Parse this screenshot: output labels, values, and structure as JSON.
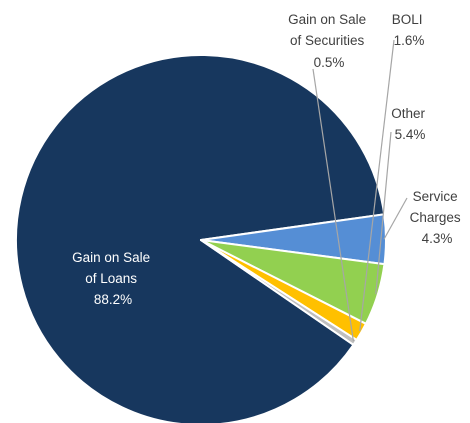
{
  "chart_data": {
    "type": "pie",
    "title": "",
    "slices": [
      {
        "name": "Gain on Sale of Loans",
        "label_lines": [
          "Gain on Sale",
          "of Loans"
        ],
        "value": 88.2,
        "value_label": "88.2%",
        "color": "#17375e"
      },
      {
        "name": "Service Charges",
        "label_lines": [
          "Service",
          "Charges"
        ],
        "value": 4.3,
        "value_label": "4.3%",
        "color": "#558ed5"
      },
      {
        "name": "Other",
        "label_lines": [
          "Other"
        ],
        "value": 5.4,
        "value_label": "5.4%",
        "color": "#92d050"
      },
      {
        "name": "BOLI",
        "label_lines": [
          "BOLI"
        ],
        "value": 1.6,
        "value_label": "1.6%",
        "color": "#ffc000"
      },
      {
        "name": "Gain on Sale of Securities",
        "label_lines": [
          "Gain on Sale",
          "of Securities"
        ],
        "value": 0.5,
        "value_label": "0.5%",
        "color": "#bfbfbf"
      }
    ],
    "legend": "none",
    "label_style": "category name and percentage; small slices labeled outside with leader lines"
  }
}
